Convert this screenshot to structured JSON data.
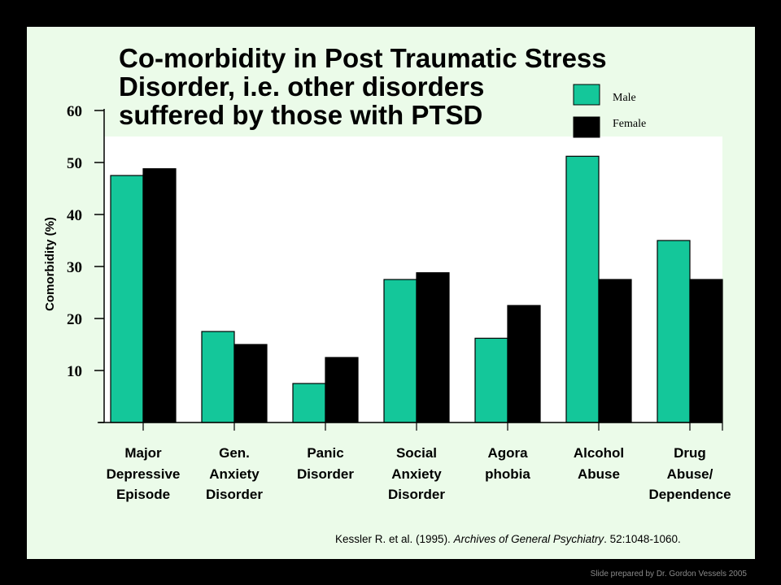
{
  "chart_data": {
    "type": "bar",
    "title_lines": [
      "Co-morbidity in Post Traumatic Stress",
      "Disorder, i.e. other disorders",
      "suffered by those with PTSD"
    ],
    "ylabel": "Comorbidity (%)",
    "ylim": [
      0,
      60
    ],
    "yticks": [
      10,
      20,
      30,
      40,
      50,
      60
    ],
    "categories": [
      [
        "Major",
        "Depressive",
        "Episode"
      ],
      [
        "Gen.",
        "Anxiety",
        "Disorder"
      ],
      [
        "Panic",
        "Disorder"
      ],
      [
        "Social",
        "Anxiety",
        "Disorder"
      ],
      [
        "Agora",
        "phobia"
      ],
      [
        "Alcohol",
        "Abuse"
      ],
      [
        "Drug",
        "Abuse/",
        "Dependence"
      ]
    ],
    "series": [
      {
        "name": "Male",
        "color": "#14c79a",
        "values": [
          47.5,
          17.5,
          7.5,
          27.5,
          16.2,
          51.2,
          35.0
        ]
      },
      {
        "name": "Female",
        "color": "#000000",
        "values": [
          48.8,
          15.0,
          12.5,
          28.8,
          22.5,
          27.5,
          27.5
        ]
      }
    ],
    "legend_position": "top-right",
    "grid": false
  },
  "citation": {
    "prefix": "Kessler R. et al. (1995). ",
    "journal": "Archives of General Psychiatry",
    "suffix": ". 52:1048-1060."
  },
  "credit": "Slide prepared by Dr. Gordon Vessels 2005",
  "colors": {
    "slide_background": "#ebfbe9",
    "plot_background": "#ffffff",
    "page_background": "#000000"
  }
}
